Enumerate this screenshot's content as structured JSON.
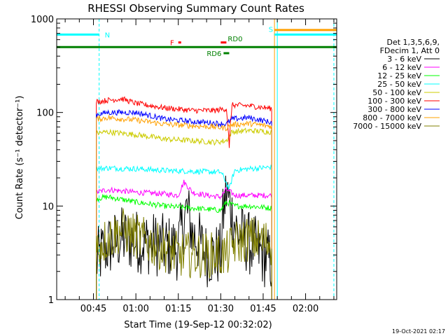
{
  "chart_data": {
    "type": "line",
    "title": "RHESSI Observing Summary Count Rates",
    "xlabel": "Start Time (19-Sep-12 00:32:02)",
    "ylabel": "Count Rate (s⁻¹ detector⁻¹)",
    "yscale": "log",
    "ylim": [
      1,
      1000
    ],
    "xlim": [
      "00:32",
      "02:11"
    ],
    "x_ticks": [
      "00:45",
      "01:00",
      "01:15",
      "01:30",
      "01:45",
      "02:00"
    ],
    "y_ticks": [
      "1",
      "10",
      "100",
      "1000"
    ],
    "timestamp": "19-Oct-2021 02:17",
    "legend": {
      "header": [
        "Det 1,3,5,6,9,",
        "FDecim 1, Att 0"
      ],
      "placement": "right"
    },
    "data_gap": {
      "start": "00:31",
      "end": "00:46"
    },
    "series": [
      {
        "name": "3 - 6 keV",
        "color": "#000000",
        "x": [
          "00:46",
          "00:49",
          "00:55",
          "01:05",
          "01:15",
          "01:18",
          "01:20",
          "01:25",
          "01:30",
          "01:32",
          "01:34",
          "01:36",
          "01:40",
          "01:45",
          "01:48"
        ],
        "values": [
          2.5,
          3.5,
          4.5,
          4,
          3.5,
          9,
          5,
          3,
          3,
          14,
          8,
          5,
          4,
          3,
          2.5
        ]
      },
      {
        "name": "6 - 12 keV",
        "color": "#ff00ff",
        "x": [
          "00:46",
          "00:50",
          "01:00",
          "01:10",
          "01:15",
          "01:17",
          "01:20",
          "01:25",
          "01:30",
          "01:32",
          "01:35",
          "01:40",
          "01:48"
        ],
        "values": [
          14,
          15,
          14,
          13.5,
          13,
          18,
          14,
          13,
          12.5,
          15,
          13,
          13,
          13
        ]
      },
      {
        "name": "12 - 25 keV",
        "color": "#00ff00",
        "x": [
          "00:46",
          "00:50",
          "01:00",
          "01:10",
          "01:20",
          "01:30",
          "01:32",
          "01:35",
          "01:40",
          "01:48"
        ],
        "values": [
          12,
          12.5,
          11,
          10,
          9.5,
          9,
          11,
          10,
          10,
          9.5
        ]
      },
      {
        "name": "25 - 50 keV",
        "color": "#00ffff",
        "x": [
          "00:46",
          "00:50",
          "01:00",
          "01:10",
          "01:20",
          "01:30",
          "01:33",
          "01:35",
          "01:40",
          "01:48"
        ],
        "values": [
          25,
          25.5,
          25,
          24,
          23.5,
          23,
          15,
          24,
          25,
          26
        ]
      },
      {
        "name": "50 - 100 keV",
        "color": "#cccc00",
        "x": [
          "00:46",
          "00:50",
          "01:00",
          "01:05",
          "01:10",
          "01:20",
          "01:28",
          "01:32",
          "01:34",
          "01:40",
          "01:48"
        ],
        "values": [
          60,
          62,
          58,
          55,
          52,
          50,
          48,
          50,
          62,
          64,
          62
        ]
      },
      {
        "name": "100 - 300 keV",
        "color": "#ff0000",
        "x": [
          "00:46",
          "00:50",
          "00:55",
          "01:00",
          "01:10",
          "01:20",
          "01:28",
          "01:32",
          "01:33",
          "01:34",
          "01:40",
          "01:48"
        ],
        "values": [
          130,
          135,
          140,
          125,
          112,
          105,
          105,
          110,
          40,
          120,
          118,
          110
        ]
      },
      {
        "name": "300 - 800 keV",
        "color": "#0000ff",
        "x": [
          "00:46",
          "00:50",
          "01:00",
          "01:10",
          "01:20",
          "01:28",
          "01:32",
          "01:34",
          "01:40",
          "01:48"
        ],
        "values": [
          95,
          100,
          100,
          85,
          80,
          77,
          75,
          85,
          88,
          78
        ]
      },
      {
        "name": "800 - 7000 keV",
        "color": "#ffa000",
        "x": [
          "00:46",
          "00:50",
          "01:00",
          "01:10",
          "01:20",
          "01:28",
          "01:32",
          "01:34",
          "01:40",
          "01:48"
        ],
        "values": [
          85,
          88,
          83,
          75,
          72,
          70,
          68,
          74,
          76,
          71
        ]
      },
      {
        "name": "7000 - 15000 keV",
        "color": "#808000",
        "x": [
          "00:46",
          "00:50",
          "00:55",
          "01:05",
          "01:15",
          "01:25",
          "01:32",
          "01:35",
          "01:40",
          "01:48"
        ],
        "values": [
          3.5,
          4.5,
          5.5,
          4,
          3,
          3,
          3,
          4,
          4.5,
          4
        ]
      }
    ],
    "flag_bars": [
      {
        "label": "N",
        "color": "#00ffff",
        "x0": "00:32",
        "x1": "00:47",
        "level": 680
      },
      {
        "label": "S",
        "color": "#00ffff",
        "x0": "01:49",
        "x1": "02:11",
        "level": 680
      },
      {
        "label": "",
        "color": "#ffa000",
        "x0": "01:49",
        "x1": "02:11",
        "level": 760
      },
      {
        "label": "F",
        "color": "#ff0000",
        "x0": "01:15",
        "x1": "01:16",
        "level": 560
      },
      {
        "label": "",
        "color": "#ff0000",
        "x0": "01:30",
        "x1": "01:32",
        "level": 560
      },
      {
        "label": "RD6",
        "color": "#008000",
        "x0": "01:31",
        "x1": "01:33",
        "level": 430
      },
      {
        "label": "RD0",
        "color": "#008000",
        "x0": "00:32",
        "x1": "02:11",
        "level": 500
      }
    ],
    "vlines": [
      {
        "color": "#00ffff",
        "x": "00:32",
        "dashed": false
      },
      {
        "color": "#00ffff",
        "x": "00:47",
        "dashed": true
      },
      {
        "color": "#ffa000",
        "x": "01:49",
        "dashed": false
      },
      {
        "color": "#00ffff",
        "x": "01:50",
        "dashed": false
      },
      {
        "color": "#00ffff",
        "x": "02:10",
        "dashed": true
      }
    ]
  }
}
